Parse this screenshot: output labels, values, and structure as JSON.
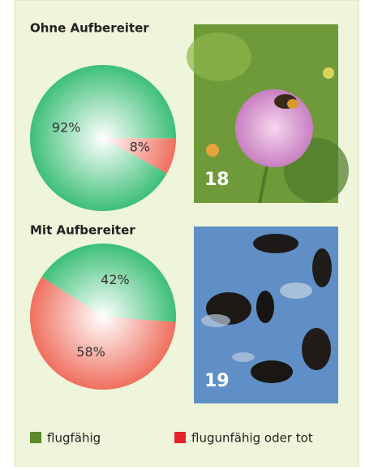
{
  "chart_data": [
    {
      "type": "pie",
      "title": "Ohne Aufbereiter",
      "categories": [
        "flugfähig",
        "flugunfähig oder tot"
      ],
      "values": [
        92,
        8
      ],
      "value_labels": [
        "92%",
        "8%"
      ],
      "colors": [
        "#3dbf77",
        "#ef6f5e"
      ]
    },
    {
      "type": "pie",
      "title": "Mit Aufbereiter",
      "categories": [
        "flugfähig",
        "flugunfähig oder tot"
      ],
      "values": [
        42,
        58
      ],
      "value_labels": [
        "42%",
        "58%"
      ],
      "colors": [
        "#3dbf77",
        "#ef6f5e"
      ]
    }
  ],
  "legend": {
    "colors": [
      "#5b8a2d",
      "#e3242b"
    ]
  },
  "figures": [
    {
      "number": "18"
    },
    {
      "number": "19"
    }
  ]
}
